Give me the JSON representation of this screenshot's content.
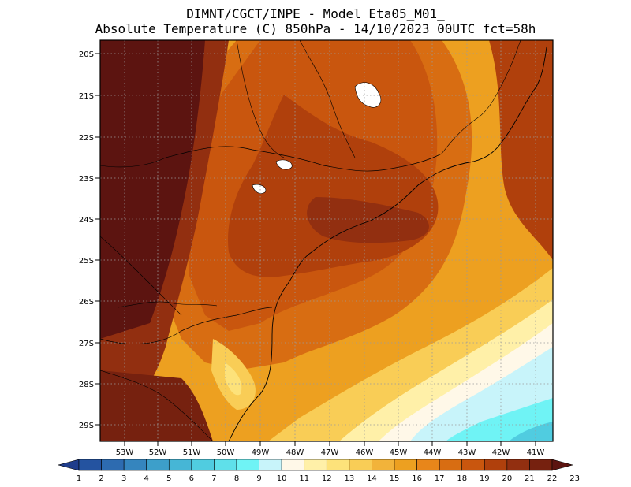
{
  "header": {
    "line1": "DIMNT/CGCT/INPE -  Model Eta05_M01_",
    "line2": "Absolute Temperature (C) 850hPa -  14/10/2023 00UTC fct=58h"
  },
  "map": {
    "variable": "Absolute Temperature (C) 850hPa",
    "lon_range": [
      -53.9,
      -40.4
    ],
    "lat_range": [
      -29.4,
      -19.9
    ],
    "lat_ticks": [
      "20S",
      "21S",
      "22S",
      "23S",
      "24S",
      "25S",
      "26S",
      "27S",
      "28S",
      "29S"
    ],
    "lon_ticks": [
      "53W",
      "52W",
      "51W",
      "50W",
      "49W",
      "48W",
      "47W",
      "46W",
      "45W",
      "44W",
      "43W",
      "42W",
      "41W"
    ],
    "grid": true
  },
  "colorbar": {
    "labels": [
      "1",
      "2",
      "3",
      "4",
      "5",
      "6",
      "7",
      "8",
      "9",
      "10",
      "11",
      "12",
      "13",
      "14",
      "15",
      "16",
      "17",
      "18",
      "19",
      "20",
      "21",
      "22",
      "23"
    ],
    "colors": [
      "#1f3d8c",
      "#2453a0",
      "#2d6bb0",
      "#3585be",
      "#3d9fca",
      "#46b6d6",
      "#50cce0",
      "#5fe0ea",
      "#6ff3f5",
      "#c8f4fa",
      "#fff8e8",
      "#fff0a8",
      "#fde27a",
      "#f9cd56",
      "#f2b33a",
      "#eda020",
      "#e8861a",
      "#d86d12",
      "#c9560e",
      "#b0400c",
      "#922f10",
      "#76210f",
      "#5c1410"
    ]
  }
}
